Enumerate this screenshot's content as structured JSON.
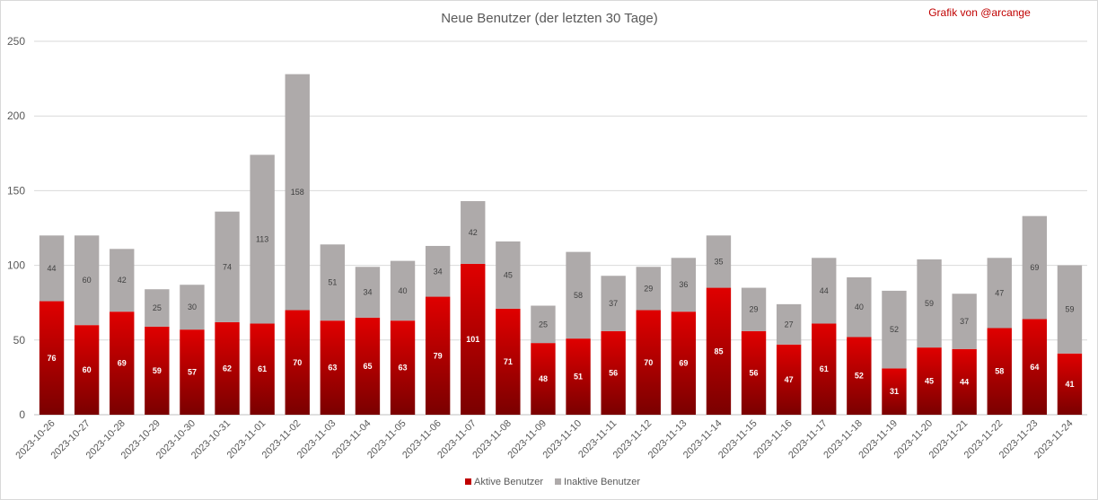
{
  "chart_data": {
    "type": "bar",
    "stacked": true,
    "title": "Neue Benutzer (der letzten 30 Tage)",
    "credit": "Grafik von @arcange",
    "categories": [
      "2023-10-26",
      "2023-10-27",
      "2023-10-28",
      "2023-10-29",
      "2023-10-30",
      "2023-10-31",
      "2023-11-01",
      "2023-11-02",
      "2023-11-03",
      "2023-11-04",
      "2023-11-05",
      "2023-11-06",
      "2023-11-07",
      "2023-11-08",
      "2023-11-09",
      "2023-11-10",
      "2023-11-11",
      "2023-11-12",
      "2023-11-13",
      "2023-11-14",
      "2023-11-15",
      "2023-11-16",
      "2023-11-17",
      "2023-11-18",
      "2023-11-19",
      "2023-11-20",
      "2023-11-21",
      "2023-11-22",
      "2023-11-23",
      "2023-11-24"
    ],
    "series": [
      {
        "name": "Aktive Benutzer",
        "color": "#c00000",
        "values": [
          76,
          60,
          69,
          59,
          57,
          62,
          61,
          70,
          63,
          65,
          63,
          79,
          101,
          71,
          48,
          51,
          56,
          70,
          69,
          85,
          56,
          47,
          61,
          52,
          31,
          45,
          44,
          58,
          64,
          41
        ]
      },
      {
        "name": "Inaktive Benutzer",
        "color": "#aeaaaa",
        "values": [
          44,
          60,
          42,
          25,
          30,
          74,
          113,
          158,
          51,
          34,
          40,
          34,
          42,
          45,
          25,
          58,
          37,
          29,
          36,
          35,
          29,
          27,
          44,
          40,
          52,
          59,
          37,
          47,
          69,
          59
        ]
      }
    ],
    "ylim": [
      0,
      250
    ],
    "yticks": [
      0,
      50,
      100,
      150,
      200,
      250
    ],
    "grid": true,
    "legend": "bottom"
  }
}
